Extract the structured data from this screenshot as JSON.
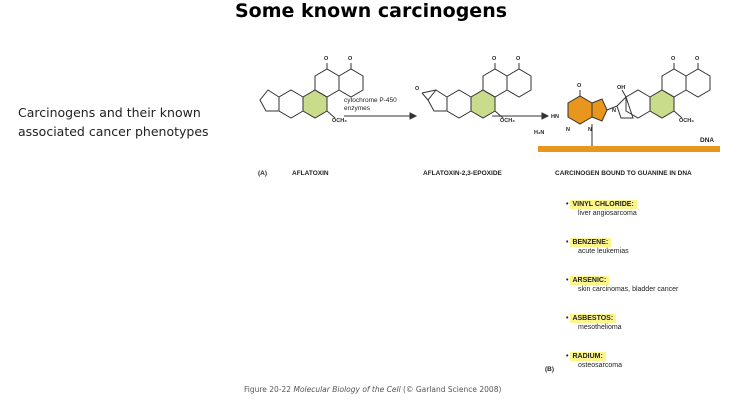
{
  "title": "Some known carcinogens",
  "side_text": "Carcinogens and their known associated cancer phenotypes",
  "panel_a": {
    "label": "(A)",
    "compounds": [
      "AFLATOXIN",
      "AFLATOXIN-2,3-EPOXIDE",
      "CARCINOGEN BOUND TO GUANINE IN DNA"
    ],
    "arrow_label": [
      "cytochrome P-450",
      "enzymes"
    ],
    "chem_labels": {
      "o": "O",
      "och3": "OCH₃",
      "oh": "OH",
      "hn": "HN",
      "h2n": "H₂N",
      "n": "N"
    },
    "dna_label": "DNA",
    "colors": {
      "highlight_ring": "#c8dc8c",
      "guanine": "#e8961e",
      "dna_bar": "#e8961e"
    }
  },
  "panel_b": {
    "label": "(B)",
    "items": [
      {
        "name": "VINYL CHLORIDE:",
        "phenotype": "liver angiosarcoma"
      },
      {
        "name": "BENZENE:",
        "phenotype": "acute leukemias"
      },
      {
        "name": "ARSENIC:",
        "phenotype": "skin carcinomas, bladder cancer"
      },
      {
        "name": "ASBESTOS:",
        "phenotype": "mesothelioma"
      },
      {
        "name": "RADIUM:",
        "phenotype": "osteosarcoma"
      }
    ],
    "highlight_color": "#fbf58c"
  },
  "caption": {
    "prefix": "Figure 20-22 ",
    "book": "Molecular Biology of the Cell",
    "suffix": " (© Garland Science 2008)"
  }
}
